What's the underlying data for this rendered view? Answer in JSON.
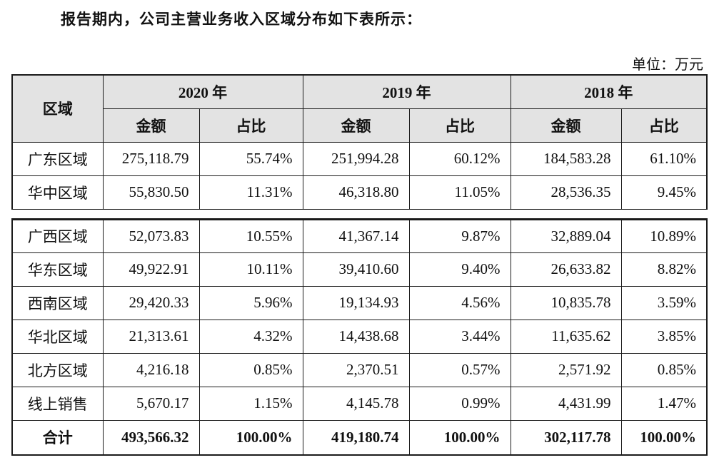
{
  "page": {
    "title": "报告期内，公司主营业务收入区域分布如下表所示：",
    "unit_label": "单位：万元"
  },
  "colors": {
    "header_bg": "#e3e3e3",
    "border_color": "#1a1a1a",
    "text_color": "#111111",
    "page_bg": "#ffffff"
  },
  "table": {
    "header": {
      "region": "区域",
      "year_groups": [
        {
          "year": "2020 年",
          "amount": "金额",
          "share": "占比"
        },
        {
          "year": "2019 年",
          "amount": "金额",
          "share": "占比"
        },
        {
          "year": "2018 年",
          "amount": "金额",
          "share": "占比"
        }
      ]
    },
    "rows_section1": [
      [
        "广东区域",
        "275,118.79",
        "55.74%",
        "251,994.28",
        "60.12%",
        "184,583.28",
        "61.10%"
      ],
      [
        "华中区域",
        "55,830.50",
        "11.31%",
        "46,318.80",
        "11.05%",
        "28,536.35",
        "9.45%"
      ]
    ],
    "rows_section2": [
      [
        "广西区域",
        "52,073.83",
        "10.55%",
        "41,367.14",
        "9.87%",
        "32,889.04",
        "10.89%"
      ],
      [
        "华东区域",
        "49,922.91",
        "10.11%",
        "39,410.60",
        "9.40%",
        "26,633.82",
        "8.82%"
      ],
      [
        "西南区域",
        "29,420.33",
        "5.96%",
        "19,134.93",
        "4.56%",
        "10,835.78",
        "3.59%"
      ],
      [
        "华北区域",
        "21,313.61",
        "4.32%",
        "14,438.68",
        "3.44%",
        "11,635.62",
        "3.85%"
      ],
      [
        "北方区域",
        "4,216.18",
        "0.85%",
        "2,370.51",
        "0.57%",
        "2,571.92",
        "0.85%"
      ],
      [
        "线上销售",
        "5,670.17",
        "1.15%",
        "4,145.78",
        "0.99%",
        "4,431.99",
        "1.47%"
      ]
    ],
    "total_rows": [
      [
        "合计",
        "493,566.32",
        "100.00%",
        "419,180.74",
        "100.00%",
        "302,117.78",
        "100.00%"
      ]
    ]
  }
}
